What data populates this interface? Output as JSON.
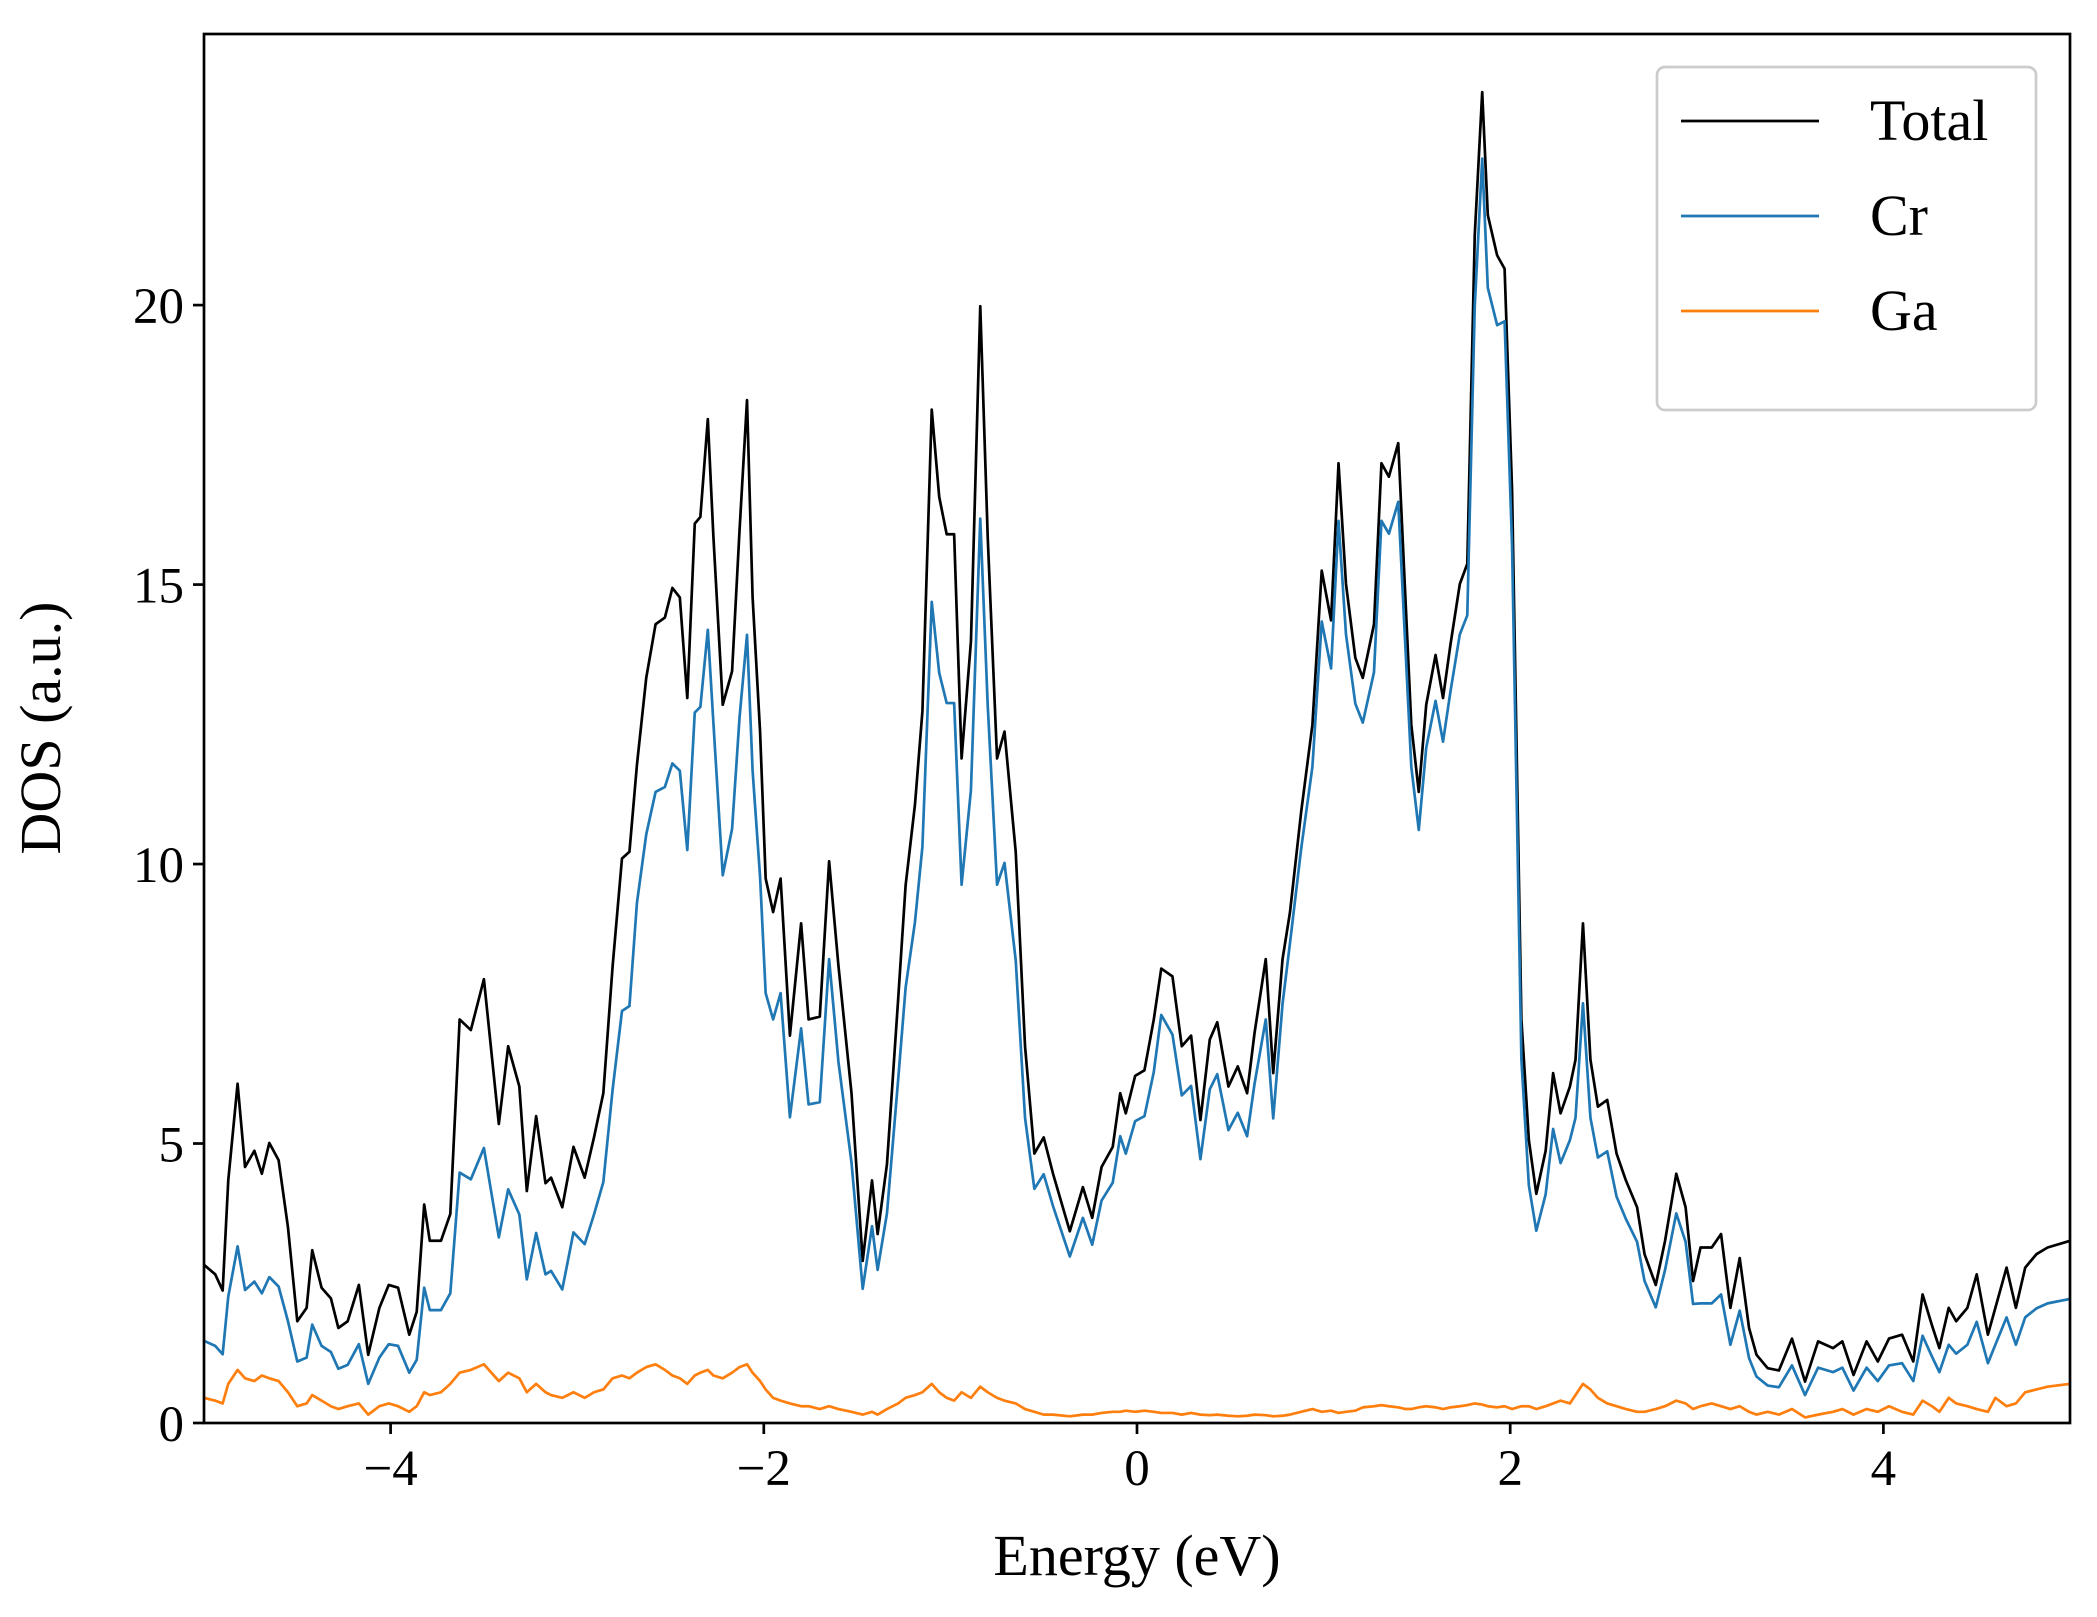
{
  "chart_data": {
    "type": "line",
    "xlabel": "Energy (eV)",
    "ylabel": "DOS (a.u.)",
    "xlim": [
      -5,
      5
    ],
    "ylim": [
      0,
      24.85
    ],
    "xticks": [
      {
        "value": -4,
        "label": "−4"
      },
      {
        "value": -2,
        "label": "−2"
      },
      0,
      2,
      4
    ],
    "yticks": [
      0,
      5,
      10,
      15,
      20
    ],
    "grid": false,
    "legend": "upper right",
    "x": [
      -5.0,
      -4.94,
      -4.9,
      -4.87,
      -4.82,
      -4.78,
      -4.73,
      -4.69,
      -4.65,
      -4.6,
      -4.55,
      -4.5,
      -4.45,
      -4.42,
      -4.37,
      -4.32,
      -4.28,
      -4.23,
      -4.17,
      -4.12,
      -4.06,
      -4.01,
      -3.96,
      -3.9,
      -3.86,
      -3.82,
      -3.79,
      -3.73,
      -3.68,
      -3.63,
      -3.57,
      -3.5,
      -3.42,
      -3.37,
      -3.31,
      -3.27,
      -3.22,
      -3.17,
      -3.14,
      -3.08,
      -3.02,
      -2.96,
      -2.91,
      -2.86,
      -2.81,
      -2.76,
      -2.72,
      -2.68,
      -2.63,
      -2.58,
      -2.53,
      -2.49,
      -2.45,
      -2.41,
      -2.37,
      -2.34,
      -2.3,
      -2.27,
      -2.22,
      -2.17,
      -2.13,
      -2.09,
      -2.06,
      -2.02,
      -1.99,
      -1.95,
      -1.91,
      -1.86,
      -1.8,
      -1.76,
      -1.7,
      -1.65,
      -1.6,
      -1.53,
      -1.47,
      -1.42,
      -1.39,
      -1.34,
      -1.28,
      -1.24,
      -1.19,
      -1.15,
      -1.1,
      -1.06,
      -1.02,
      -0.98,
      -0.94,
      -0.89,
      -0.84,
      -0.8,
      -0.75,
      -0.71,
      -0.65,
      -0.6,
      -0.55,
      -0.5,
      -0.45,
      -0.36,
      -0.29,
      -0.24,
      -0.19,
      -0.13,
      -0.09,
      -0.06,
      -0.01,
      0.04,
      0.09,
      0.13,
      0.19,
      0.24,
      0.29,
      0.34,
      0.39,
      0.43,
      0.49,
      0.54,
      0.59,
      0.63,
      0.69,
      0.73,
      0.78,
      0.82,
      0.88,
      0.94,
      0.99,
      1.04,
      1.08,
      1.12,
      1.17,
      1.21,
      1.27,
      1.31,
      1.35,
      1.4,
      1.44,
      1.47,
      1.51,
      1.55,
      1.6,
      1.64,
      1.68,
      1.73,
      1.77,
      1.81,
      1.85,
      1.88,
      1.93,
      1.97,
      2.01,
      2.06,
      2.1,
      2.14,
      2.19,
      2.23,
      2.27,
      2.32,
      2.35,
      2.39,
      2.43,
      2.47,
      2.52,
      2.57,
      2.62,
      2.68,
      2.72,
      2.78,
      2.83,
      2.89,
      2.94,
      2.98,
      3.02,
      3.08,
      3.13,
      3.18,
      3.23,
      3.28,
      3.32,
      3.38,
      3.44,
      3.51,
      3.58,
      3.65,
      3.73,
      3.78,
      3.84,
      3.91,
      3.97,
      4.03,
      4.1,
      4.16,
      4.21,
      4.26,
      4.3,
      4.35,
      4.39,
      4.45,
      4.5,
      4.56,
      4.6,
      4.66,
      4.71,
      4.76,
      4.82,
      4.88,
      5.0
    ],
    "series": [
      {
        "name": "Total",
        "color": "#000000",
        "values": [
          2.83,
          2.66,
          2.37,
          4.34,
          6.07,
          4.58,
          4.87,
          4.46,
          5.01,
          4.7,
          3.5,
          1.82,
          2.06,
          3.09,
          2.42,
          2.23,
          1.7,
          1.82,
          2.47,
          1.22,
          2.06,
          2.47,
          2.42,
          1.58,
          1.99,
          3.91,
          3.26,
          3.26,
          3.74,
          7.22,
          7.03,
          7.94,
          5.35,
          6.74,
          6.02,
          4.15,
          5.49,
          4.29,
          4.39,
          3.86,
          4.94,
          4.39,
          5.11,
          5.9,
          8.18,
          10.1,
          10.22,
          11.77,
          13.33,
          14.29,
          14.41,
          14.94,
          14.77,
          12.97,
          16.09,
          16.21,
          17.96,
          15.85,
          12.85,
          13.45,
          15.97,
          18.3,
          14.77,
          12.37,
          9.74,
          9.14,
          9.74,
          6.93,
          8.94,
          7.22,
          7.27,
          10.05,
          8.18,
          5.9,
          2.9,
          4.34,
          3.38,
          4.63,
          7.58,
          9.62,
          11.06,
          12.73,
          18.13,
          16.57,
          15.9,
          15.9,
          11.89,
          13.98,
          19.98,
          15.85,
          11.89,
          12.37,
          10.22,
          6.74,
          4.82,
          5.11,
          4.46,
          3.43,
          4.22,
          3.67,
          4.58,
          4.94,
          5.9,
          5.54,
          6.21,
          6.31,
          7.22,
          8.13,
          7.99,
          6.74,
          6.93,
          5.42,
          6.86,
          7.17,
          6.02,
          6.38,
          5.9,
          6.98,
          8.3,
          6.26,
          8.3,
          9.14,
          10.94,
          12.49,
          15.25,
          14.36,
          17.17,
          15.01,
          13.69,
          13.33,
          14.29,
          17.17,
          16.93,
          17.53,
          14.65,
          12.49,
          11.29,
          12.85,
          13.74,
          12.97,
          13.93,
          15.01,
          15.37,
          21.25,
          23.81,
          21.61,
          20.89,
          20.65,
          16.69,
          7.22,
          5.06,
          4.1,
          4.87,
          6.26,
          5.54,
          6.02,
          6.5,
          8.94,
          6.5,
          5.66,
          5.78,
          4.82,
          4.34,
          3.86,
          3.02,
          2.47,
          3.26,
          4.46,
          3.86,
          2.54,
          3.14,
          3.14,
          3.38,
          2.06,
          2.95,
          1.7,
          1.22,
          0.98,
          0.94,
          1.51,
          0.74,
          1.46,
          1.34,
          1.46,
          0.86,
          1.46,
          1.1,
          1.51,
          1.58,
          1.1,
          2.3,
          1.75,
          1.34,
          2.06,
          1.82,
          2.06,
          2.66,
          1.58,
          2.06,
          2.78,
          2.06,
          2.78,
          3.02,
          3.14,
          3.26
        ]
      },
      {
        "name": "Cr",
        "color": "#1f77b4",
        "values": [
          1.47,
          1.38,
          1.23,
          2.26,
          3.16,
          2.38,
          2.53,
          2.32,
          2.61,
          2.44,
          1.82,
          1.1,
          1.17,
          1.76,
          1.38,
          1.27,
          0.97,
          1.04,
          1.41,
          0.7,
          1.17,
          1.41,
          1.38,
          0.9,
          1.13,
          2.42,
          2.02,
          2.02,
          2.32,
          4.48,
          4.36,
          4.92,
          3.32,
          4.18,
          3.73,
          2.57,
          3.4,
          2.66,
          2.72,
          2.39,
          3.41,
          3.2,
          3.73,
          4.31,
          5.97,
          7.37,
          7.46,
          9.3,
          10.53,
          11.29,
          11.38,
          11.8,
          11.67,
          10.25,
          12.71,
          12.81,
          14.19,
          12.52,
          9.8,
          10.63,
          12.62,
          14.1,
          11.67,
          9.77,
          7.69,
          7.22,
          7.69,
          5.47,
          7.06,
          5.7,
          5.74,
          8.3,
          6.46,
          4.66,
          2.4,
          3.52,
          2.74,
          3.75,
          6.14,
          7.79,
          8.96,
          10.31,
          14.69,
          13.42,
          12.88,
          12.88,
          9.63,
          11.32,
          16.18,
          12.84,
          9.63,
          10.02,
          8.28,
          5.46,
          4.19,
          4.45,
          3.88,
          2.98,
          3.67,
          3.19,
          3.98,
          4.3,
          5.13,
          4.82,
          5.4,
          5.49,
          6.28,
          7.3,
          6.95,
          5.86,
          6.03,
          4.72,
          5.97,
          6.24,
          5.24,
          5.55,
          5.13,
          6.07,
          7.22,
          5.45,
          7.5,
          8.59,
          10.28,
          11.74,
          14.34,
          13.5,
          16.14,
          14.11,
          12.87,
          12.53,
          13.43,
          16.14,
          15.91,
          16.48,
          13.77,
          11.74,
          10.61,
          12.08,
          12.92,
          12.19,
          13.09,
          14.11,
          14.45,
          19.98,
          22.62,
          20.31,
          19.64,
          19.71,
          15.69,
          6.5,
          4.25,
          3.44,
          4.09,
          5.26,
          4.65,
          5.06,
          5.46,
          7.51,
          5.46,
          4.75,
          4.86,
          4.05,
          3.65,
          3.24,
          2.54,
          2.07,
          2.74,
          3.75,
          3.24,
          2.13,
          2.14,
          2.14,
          2.3,
          1.4,
          2.01,
          1.16,
          0.83,
          0.67,
          0.64,
          1.03,
          0.5,
          0.99,
          0.91,
          0.99,
          0.58,
          0.99,
          0.75,
          1.03,
          1.07,
          0.75,
          1.56,
          1.19,
          0.91,
          1.4,
          1.24,
          1.4,
          1.81,
          1.07,
          1.4,
          1.89,
          1.4,
          1.89,
          2.05,
          2.14,
          2.22
        ]
      },
      {
        "name": "Ga",
        "color": "#ff7f0e",
        "values": [
          0.45,
          0.4,
          0.35,
          0.7,
          0.95,
          0.8,
          0.75,
          0.85,
          0.8,
          0.75,
          0.55,
          0.3,
          0.35,
          0.5,
          0.4,
          0.3,
          0.25,
          0.3,
          0.35,
          0.15,
          0.3,
          0.35,
          0.3,
          0.2,
          0.3,
          0.55,
          0.5,
          0.55,
          0.7,
          0.9,
          0.95,
          1.05,
          0.75,
          0.9,
          0.8,
          0.55,
          0.7,
          0.55,
          0.5,
          0.45,
          0.55,
          0.45,
          0.55,
          0.6,
          0.8,
          0.85,
          0.8,
          0.9,
          1.0,
          1.05,
          0.95,
          0.85,
          0.8,
          0.7,
          0.85,
          0.9,
          0.95,
          0.85,
          0.8,
          0.9,
          1.0,
          1.05,
          0.9,
          0.75,
          0.6,
          0.45,
          0.4,
          0.35,
          0.3,
          0.3,
          0.25,
          0.3,
          0.25,
          0.2,
          0.15,
          0.2,
          0.15,
          0.25,
          0.35,
          0.45,
          0.5,
          0.55,
          0.7,
          0.55,
          0.45,
          0.4,
          0.55,
          0.45,
          0.65,
          0.55,
          0.45,
          0.4,
          0.35,
          0.25,
          0.2,
          0.15,
          0.15,
          0.12,
          0.15,
          0.15,
          0.18,
          0.2,
          0.2,
          0.22,
          0.2,
          0.22,
          0.2,
          0.18,
          0.18,
          0.15,
          0.18,
          0.15,
          0.14,
          0.15,
          0.13,
          0.12,
          0.13,
          0.15,
          0.14,
          0.12,
          0.13,
          0.15,
          0.2,
          0.25,
          0.2,
          0.22,
          0.18,
          0.2,
          0.22,
          0.28,
          0.3,
          0.32,
          0.3,
          0.28,
          0.25,
          0.25,
          0.28,
          0.3,
          0.28,
          0.25,
          0.28,
          0.3,
          0.32,
          0.35,
          0.33,
          0.3,
          0.28,
          0.3,
          0.25,
          0.3,
          0.3,
          0.25,
          0.3,
          0.35,
          0.4,
          0.35,
          0.5,
          0.7,
          0.6,
          0.45,
          0.35,
          0.3,
          0.25,
          0.2,
          0.2,
          0.25,
          0.3,
          0.4,
          0.35,
          0.25,
          0.3,
          0.35,
          0.3,
          0.25,
          0.3,
          0.2,
          0.15,
          0.2,
          0.15,
          0.25,
          0.1,
          0.15,
          0.2,
          0.25,
          0.15,
          0.25,
          0.2,
          0.3,
          0.2,
          0.15,
          0.4,
          0.3,
          0.2,
          0.45,
          0.35,
          0.3,
          0.25,
          0.2,
          0.45,
          0.3,
          0.35,
          0.55,
          0.6,
          0.65,
          0.7
        ]
      }
    ]
  }
}
